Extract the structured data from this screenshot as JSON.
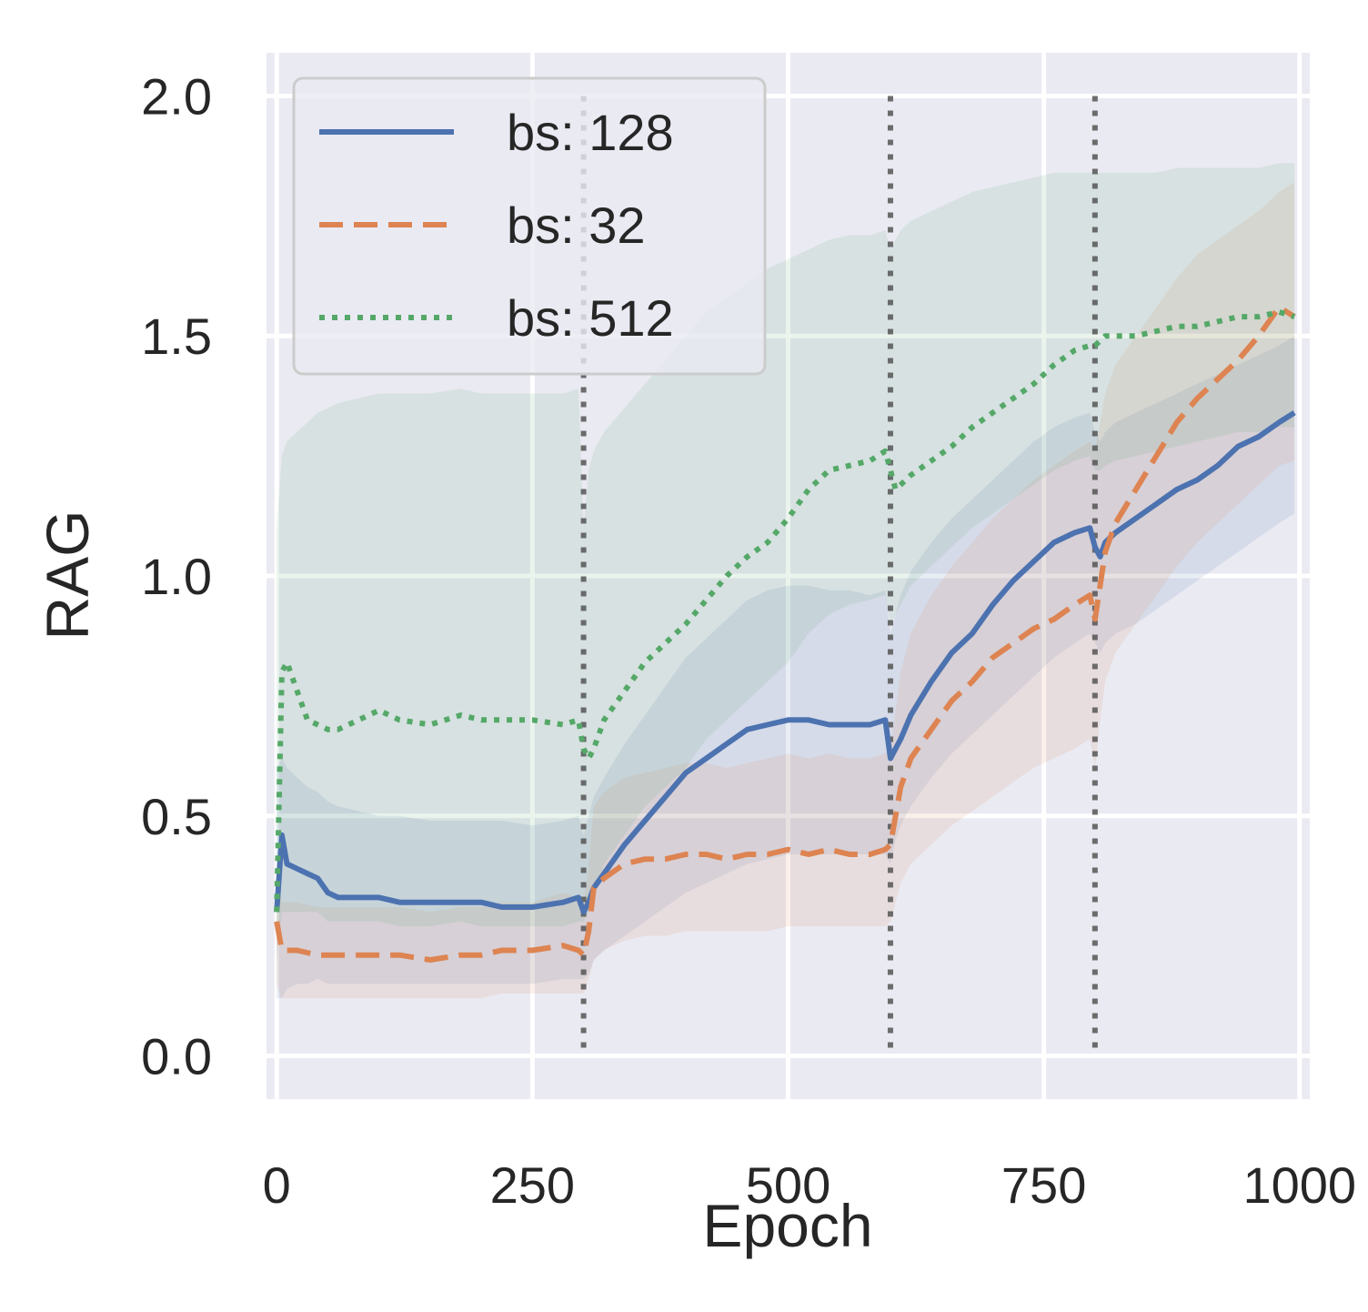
{
  "chart_data": {
    "type": "line",
    "xlabel": "Epoch",
    "ylabel": "RAG",
    "xlim": [
      -10,
      1010
    ],
    "ylim": [
      -0.09,
      2.09
    ],
    "x_ticks": [
      0,
      250,
      500,
      750,
      1000
    ],
    "y_ticks": [
      0.0,
      0.5,
      1.0,
      1.5,
      2.0
    ],
    "x_tick_labels": [
      "0",
      "250",
      "500",
      "750",
      "1000"
    ],
    "y_tick_labels": [
      "0.0",
      "0.5",
      "1.0",
      "1.5",
      "2.0"
    ],
    "grid": true,
    "legend_position": "top-left",
    "vlines": [
      300,
      600,
      800
    ],
    "series": [
      {
        "name": "bs: 128",
        "color": "#4c72b0",
        "style": "solid",
        "x": [
          0,
          5,
          10,
          20,
          30,
          40,
          50,
          60,
          80,
          100,
          120,
          150,
          180,
          200,
          220,
          250,
          280,
          295,
          300,
          305,
          310,
          320,
          340,
          360,
          380,
          400,
          420,
          440,
          460,
          480,
          500,
          520,
          540,
          560,
          580,
          595,
          600,
          605,
          610,
          620,
          640,
          660,
          680,
          700,
          720,
          740,
          760,
          780,
          795,
          800,
          805,
          810,
          820,
          840,
          860,
          880,
          900,
          920,
          940,
          960,
          980,
          995
        ],
        "y": [
          0.3,
          0.46,
          0.4,
          0.39,
          0.38,
          0.37,
          0.34,
          0.33,
          0.33,
          0.33,
          0.32,
          0.32,
          0.32,
          0.32,
          0.31,
          0.31,
          0.32,
          0.33,
          0.3,
          0.32,
          0.35,
          0.38,
          0.44,
          0.49,
          0.54,
          0.59,
          0.62,
          0.65,
          0.68,
          0.69,
          0.7,
          0.7,
          0.69,
          0.69,
          0.69,
          0.7,
          0.62,
          0.64,
          0.66,
          0.71,
          0.78,
          0.84,
          0.88,
          0.94,
          0.99,
          1.03,
          1.07,
          1.09,
          1.1,
          1.06,
          1.04,
          1.07,
          1.09,
          1.12,
          1.15,
          1.18,
          1.2,
          1.23,
          1.27,
          1.29,
          1.32,
          1.34
        ],
        "lower": [
          0.12,
          0.12,
          0.14,
          0.15,
          0.15,
          0.16,
          0.15,
          0.15,
          0.15,
          0.15,
          0.15,
          0.15,
          0.15,
          0.15,
          0.15,
          0.15,
          0.16,
          0.16,
          0.16,
          0.17,
          0.2,
          0.22,
          0.25,
          0.28,
          0.31,
          0.34,
          0.36,
          0.38,
          0.4,
          0.41,
          0.42,
          0.42,
          0.42,
          0.42,
          0.42,
          0.42,
          0.4,
          0.45,
          0.48,
          0.52,
          0.58,
          0.63,
          0.67,
          0.71,
          0.75,
          0.79,
          0.83,
          0.86,
          0.88,
          0.86,
          0.84,
          0.86,
          0.88,
          0.9,
          0.93,
          0.96,
          0.99,
          1.02,
          1.05,
          1.08,
          1.11,
          1.13
        ],
        "upper": [
          0.6,
          0.62,
          0.6,
          0.58,
          0.56,
          0.55,
          0.53,
          0.52,
          0.51,
          0.5,
          0.5,
          0.49,
          0.49,
          0.49,
          0.49,
          0.48,
          0.49,
          0.5,
          0.46,
          0.5,
          0.54,
          0.58,
          0.65,
          0.71,
          0.77,
          0.83,
          0.87,
          0.91,
          0.95,
          0.97,
          0.98,
          0.98,
          0.97,
          0.97,
          0.96,
          0.97,
          0.88,
          0.92,
          0.96,
          1.01,
          1.07,
          1.12,
          1.16,
          1.2,
          1.24,
          1.28,
          1.31,
          1.33,
          1.34,
          1.3,
          1.28,
          1.3,
          1.32,
          1.34,
          1.36,
          1.38,
          1.4,
          1.42,
          1.44,
          1.46,
          1.48,
          1.5
        ]
      },
      {
        "name": "bs: 32",
        "color": "#dd8452",
        "style": "dashed",
        "x": [
          0,
          5,
          10,
          20,
          40,
          60,
          80,
          100,
          120,
          150,
          180,
          200,
          220,
          250,
          280,
          295,
          300,
          305,
          310,
          320,
          340,
          360,
          380,
          400,
          420,
          440,
          460,
          480,
          500,
          520,
          540,
          560,
          580,
          595,
          600,
          605,
          610,
          620,
          640,
          660,
          680,
          700,
          720,
          740,
          760,
          780,
          795,
          800,
          805,
          810,
          820,
          840,
          860,
          880,
          900,
          920,
          940,
          960,
          980,
          995
        ],
        "y": [
          0.28,
          0.22,
          0.22,
          0.22,
          0.21,
          0.21,
          0.21,
          0.21,
          0.21,
          0.2,
          0.21,
          0.21,
          0.22,
          0.22,
          0.23,
          0.22,
          0.21,
          0.26,
          0.35,
          0.37,
          0.4,
          0.41,
          0.41,
          0.42,
          0.42,
          0.41,
          0.42,
          0.42,
          0.43,
          0.42,
          0.43,
          0.42,
          0.42,
          0.43,
          0.44,
          0.5,
          0.56,
          0.62,
          0.68,
          0.74,
          0.78,
          0.83,
          0.86,
          0.89,
          0.91,
          0.94,
          0.96,
          0.91,
          0.98,
          1.05,
          1.11,
          1.18,
          1.25,
          1.32,
          1.37,
          1.41,
          1.45,
          1.5,
          1.56,
          1.54
        ],
        "lower": [
          0.15,
          0.12,
          0.12,
          0.12,
          0.12,
          0.12,
          0.12,
          0.12,
          0.12,
          0.12,
          0.12,
          0.12,
          0.13,
          0.13,
          0.13,
          0.13,
          0.13,
          0.16,
          0.2,
          0.22,
          0.24,
          0.25,
          0.25,
          0.26,
          0.26,
          0.26,
          0.26,
          0.26,
          0.27,
          0.27,
          0.27,
          0.27,
          0.27,
          0.27,
          0.28,
          0.32,
          0.36,
          0.4,
          0.44,
          0.48,
          0.51,
          0.54,
          0.57,
          0.6,
          0.62,
          0.64,
          0.66,
          0.6,
          0.7,
          0.78,
          0.84,
          0.9,
          0.96,
          1.02,
          1.07,
          1.11,
          1.15,
          1.19,
          1.23,
          1.24
        ],
        "upper": [
          0.4,
          0.32,
          0.32,
          0.32,
          0.31,
          0.31,
          0.31,
          0.31,
          0.31,
          0.3,
          0.31,
          0.31,
          0.32,
          0.32,
          0.34,
          0.33,
          0.32,
          0.4,
          0.52,
          0.55,
          0.58,
          0.59,
          0.6,
          0.61,
          0.61,
          0.6,
          0.61,
          0.62,
          0.63,
          0.62,
          0.63,
          0.62,
          0.62,
          0.63,
          0.64,
          0.72,
          0.8,
          0.88,
          0.96,
          1.02,
          1.07,
          1.12,
          1.16,
          1.2,
          1.23,
          1.26,
          1.28,
          1.26,
          1.32,
          1.38,
          1.44,
          1.5,
          1.56,
          1.62,
          1.67,
          1.7,
          1.73,
          1.76,
          1.8,
          1.82
        ]
      },
      {
        "name": "bs: 512",
        "color": "#55a868",
        "style": "dotted",
        "x": [
          0,
          5,
          10,
          20,
          30,
          40,
          50,
          60,
          80,
          100,
          120,
          150,
          180,
          200,
          220,
          250,
          280,
          295,
          300,
          305,
          310,
          320,
          340,
          360,
          380,
          400,
          420,
          440,
          460,
          480,
          500,
          520,
          540,
          560,
          580,
          595,
          600,
          605,
          610,
          620,
          640,
          660,
          680,
          700,
          720,
          740,
          760,
          780,
          795,
          800,
          805,
          810,
          820,
          840,
          860,
          880,
          900,
          920,
          940,
          960,
          980,
          995
        ],
        "y": [
          0.3,
          0.8,
          0.82,
          0.76,
          0.7,
          0.69,
          0.68,
          0.68,
          0.7,
          0.72,
          0.7,
          0.69,
          0.71,
          0.7,
          0.7,
          0.7,
          0.69,
          0.7,
          0.64,
          0.62,
          0.64,
          0.7,
          0.76,
          0.82,
          0.86,
          0.9,
          0.95,
          1.0,
          1.04,
          1.07,
          1.12,
          1.18,
          1.22,
          1.23,
          1.24,
          1.26,
          1.22,
          1.18,
          1.19,
          1.21,
          1.24,
          1.27,
          1.31,
          1.34,
          1.37,
          1.4,
          1.44,
          1.47,
          1.48,
          1.48,
          1.49,
          1.5,
          1.5,
          1.5,
          1.51,
          1.52,
          1.52,
          1.53,
          1.54,
          1.54,
          1.55,
          1.54
        ],
        "lower": [
          0.2,
          0.3,
          0.3,
          0.3,
          0.3,
          0.3,
          0.28,
          0.28,
          0.28,
          0.28,
          0.27,
          0.27,
          0.28,
          0.27,
          0.27,
          0.27,
          0.27,
          0.28,
          0.28,
          0.3,
          0.34,
          0.4,
          0.46,
          0.52,
          0.56,
          0.6,
          0.66,
          0.7,
          0.74,
          0.78,
          0.82,
          0.88,
          0.92,
          0.94,
          0.95,
          0.96,
          0.9,
          0.92,
          0.94,
          0.98,
          1.02,
          1.06,
          1.1,
          1.13,
          1.16,
          1.19,
          1.22,
          1.24,
          1.25,
          1.22,
          1.22,
          1.23,
          1.24,
          1.25,
          1.26,
          1.27,
          1.28,
          1.29,
          1.3,
          1.3,
          1.31,
          1.31
        ],
        "upper": [
          1.1,
          1.25,
          1.28,
          1.3,
          1.32,
          1.34,
          1.35,
          1.36,
          1.37,
          1.38,
          1.38,
          1.38,
          1.39,
          1.38,
          1.38,
          1.38,
          1.38,
          1.39,
          1.1,
          1.22,
          1.26,
          1.3,
          1.35,
          1.4,
          1.45,
          1.5,
          1.55,
          1.58,
          1.61,
          1.64,
          1.66,
          1.68,
          1.7,
          1.71,
          1.71,
          1.72,
          1.68,
          1.7,
          1.72,
          1.74,
          1.76,
          1.78,
          1.8,
          1.81,
          1.82,
          1.83,
          1.84,
          1.84,
          1.84,
          1.84,
          1.84,
          1.84,
          1.84,
          1.84,
          1.84,
          1.85,
          1.85,
          1.85,
          1.85,
          1.85,
          1.86,
          1.86
        ]
      }
    ]
  }
}
